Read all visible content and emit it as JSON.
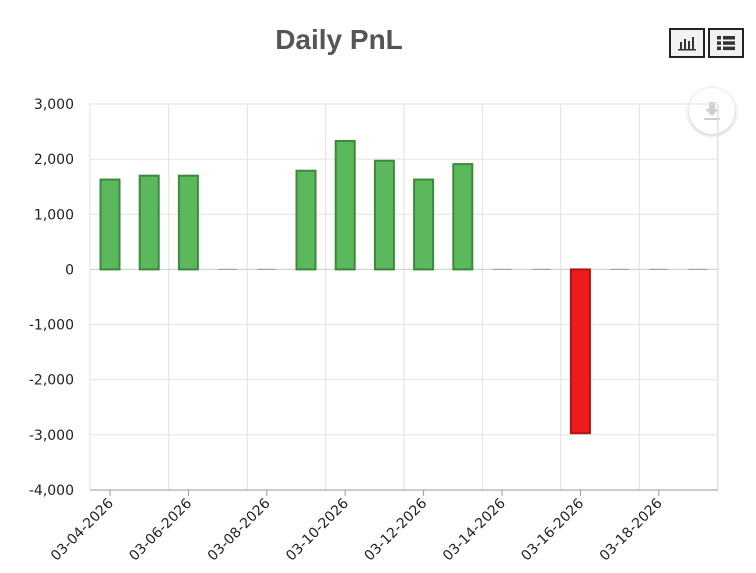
{
  "toolbar": {
    "chart_view_icon": "bar-chart-icon",
    "list_view_icon": "list-icon",
    "download_icon": "download-icon"
  },
  "colors": {
    "positive": "#5cb85c",
    "positive_edge": "#3a8a3a",
    "negative": "#ee1c1c",
    "negative_edge": "#b01515",
    "grid": "#e2e2e2"
  },
  "chart_data": {
    "type": "bar",
    "title": "Daily PnL",
    "xlabel": "",
    "ylabel": "",
    "ylim": [
      -4000,
      3000
    ],
    "yticks": [
      3000,
      2000,
      1000,
      0,
      -1000,
      -2000,
      -3000,
      -4000
    ],
    "ytick_labels": [
      "3,000",
      "2,000",
      "1,000",
      "0",
      "-1,000",
      "-2,000",
      "-3,000",
      "-4,000"
    ],
    "grid": true,
    "categories": [
      "03-04-2026",
      "03-05-2026",
      "03-06-2026",
      "03-07-2026",
      "03-08-2026",
      "03-09-2026",
      "03-10-2026",
      "03-11-2026",
      "03-12-2026",
      "03-13-2026",
      "03-14-2026",
      "03-15-2026",
      "03-16-2026",
      "03-17-2026",
      "03-18-2026",
      "03-19-2026"
    ],
    "xtick_labels": [
      "03-04-2026",
      "03-06-2026",
      "03-08-2026",
      "03-10-2026",
      "03-12-2026",
      "03-14-2026",
      "03-16-2026",
      "03-18-2026"
    ],
    "values": [
      1630,
      1700,
      1700,
      0,
      0,
      1790,
      2330,
      1970,
      1630,
      1910,
      0,
      0,
      -2970,
      0,
      0,
      0
    ]
  }
}
